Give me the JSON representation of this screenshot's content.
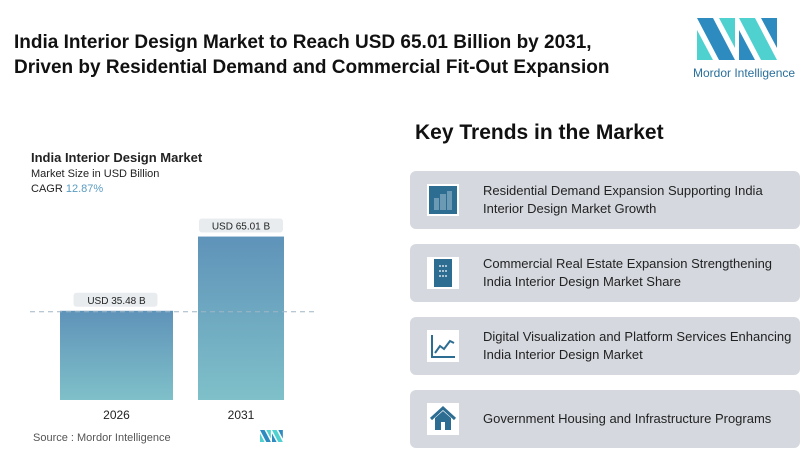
{
  "header": {
    "title_line1": "India Interior Design Market to Reach USD 65.01 Billion by 2031,",
    "title_line2": "Driven by Residential Demand and Commercial Fit-Out Expansion",
    "logo_text": "Mordor Intelligence"
  },
  "chart_data": {
    "type": "bar",
    "title": "India Interior Design Market",
    "subtitle": "Market Size in USD Billion",
    "cagr_label": "CAGR",
    "cagr_value": "12.87%",
    "categories": [
      "2026",
      "2031"
    ],
    "values": [
      35.48,
      65.01
    ],
    "data_labels": [
      "USD 35.48 B",
      "USD 65.01 B"
    ],
    "bar_color_top": "#5f93b9",
    "bar_color_bottom": "#7fc0c9",
    "source": "Source :  Mordor Intelligence"
  },
  "trends": {
    "title": "Key Trends in the Market",
    "items": [
      {
        "icon": "buildings-icon",
        "label": "Residential Demand Expansion Supporting India Interior Design Market Growth"
      },
      {
        "icon": "office-building-icon",
        "label": "Commercial Real Estate Expansion Strengthening India Interior Design Market Share"
      },
      {
        "icon": "line-chart-icon",
        "label": "Digital Visualization and Platform Services Enhancing India Interior Design Market"
      },
      {
        "icon": "house-icon",
        "label": "Government Housing and Infrastructure Programs"
      }
    ]
  }
}
